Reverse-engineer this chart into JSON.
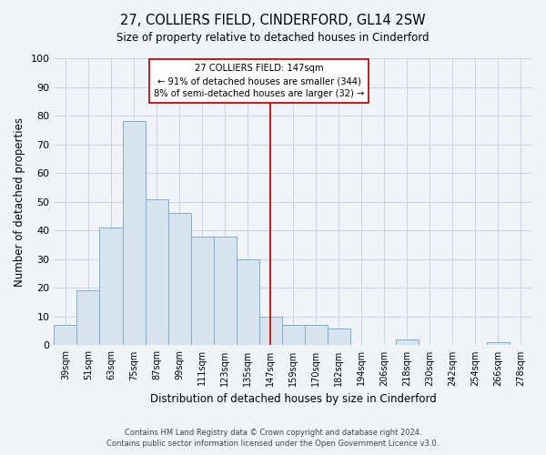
{
  "title": "27, COLLIERS FIELD, CINDERFORD, GL14 2SW",
  "subtitle": "Size of property relative to detached houses in Cinderford",
  "xlabel": "Distribution of detached houses by size in Cinderford",
  "ylabel": "Number of detached properties",
  "bar_color": "#d6e4f0",
  "bar_edge_color": "#7aaed4",
  "bin_labels": [
    "39sqm",
    "51sqm",
    "63sqm",
    "75sqm",
    "87sqm",
    "99sqm",
    "111sqm",
    "123sqm",
    "135sqm",
    "147sqm",
    "159sqm",
    "170sqm",
    "182sqm",
    "194sqm",
    "206sqm",
    "218sqm",
    "230sqm",
    "242sqm",
    "254sqm",
    "266sqm",
    "278sqm"
  ],
  "bar_heights": [
    7,
    19,
    41,
    78,
    51,
    46,
    38,
    38,
    30,
    10,
    7,
    7,
    6,
    0,
    0,
    2,
    0,
    0,
    0,
    1,
    0
  ],
  "vline_x_index": 9,
  "vline_color": "#aa0000",
  "annotation_title": "27 COLLIERS FIELD: 147sqm",
  "annotation_line1": "← 91% of detached houses are smaller (344)",
  "annotation_line2": "8% of semi-detached houses are larger (32) →",
  "annotation_box_color": "#ffffff",
  "annotation_box_edge": "#aa0000",
  "ylim": [
    0,
    100
  ],
  "yticks": [
    0,
    10,
    20,
    30,
    40,
    50,
    60,
    70,
    80,
    90,
    100
  ],
  "grid_color": "#c8d4e0",
  "footer_line1": "Contains HM Land Registry data © Crown copyright and database right 2024.",
  "footer_line2": "Contains public sector information licensed under the Open Government Licence v3.0.",
  "bg_color": "#f0f4f8"
}
